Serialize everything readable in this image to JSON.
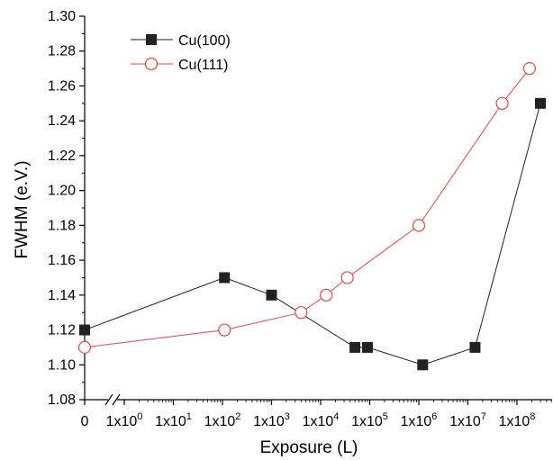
{
  "chart_data": {
    "type": "line",
    "xlabel": "Exposure (L)",
    "ylabel": "FWHM (e.V.)",
    "xscale": "log with zero break",
    "ylim": [
      1.08,
      1.3
    ],
    "yticks": [
      "1.08",
      "1.10",
      "1.12",
      "1.14",
      "1.16",
      "1.18",
      "1.20",
      "1.22",
      "1.24",
      "1.26",
      "1.28",
      "1.30"
    ],
    "xticks": [
      {
        "label": "0",
        "sup": "",
        "value": 0
      },
      {
        "label": "1x10",
        "sup": "0",
        "value": 1
      },
      {
        "label": "1x10",
        "sup": "1",
        "value": 10
      },
      {
        "label": "1x10",
        "sup": "2",
        "value": 100
      },
      {
        "label": "1x10",
        "sup": "3",
        "value": 1000
      },
      {
        "label": "1x10",
        "sup": "4",
        "value": 10000
      },
      {
        "label": "1x10",
        "sup": "5",
        "value": 100000
      },
      {
        "label": "1x10",
        "sup": "6",
        "value": 1000000
      },
      {
        "label": "1x10",
        "sup": "7",
        "value": 10000000
      },
      {
        "label": "1x10",
        "sup": "8",
        "value": 100000000
      }
    ],
    "legend_position": "top-left",
    "series": [
      {
        "name": "Cu(100)",
        "color": "#222222",
        "marker": "filled-square",
        "points": [
          {
            "x": 0,
            "y": 1.12
          },
          {
            "x": 110,
            "y": 1.15
          },
          {
            "x": 1000,
            "y": 1.14
          },
          {
            "x": 50000,
            "y": 1.11
          },
          {
            "x": 90000,
            "y": 1.11
          },
          {
            "x": 1200000,
            "y": 1.1
          },
          {
            "x": 14000000,
            "y": 1.11
          },
          {
            "x": 300000000,
            "y": 1.25
          }
        ]
      },
      {
        "name": "Cu(111)",
        "color": "#e8483f",
        "marker": "open-circle",
        "points": [
          {
            "x": 0,
            "y": 1.11
          },
          {
            "x": 110,
            "y": 1.12
          },
          {
            "x": 4000,
            "y": 1.13
          },
          {
            "x": 13000,
            "y": 1.14
          },
          {
            "x": 35000,
            "y": 1.15
          },
          {
            "x": 1000000,
            "y": 1.18
          },
          {
            "x": 50000000,
            "y": 1.25
          },
          {
            "x": 180000000,
            "y": 1.27
          }
        ]
      }
    ]
  }
}
